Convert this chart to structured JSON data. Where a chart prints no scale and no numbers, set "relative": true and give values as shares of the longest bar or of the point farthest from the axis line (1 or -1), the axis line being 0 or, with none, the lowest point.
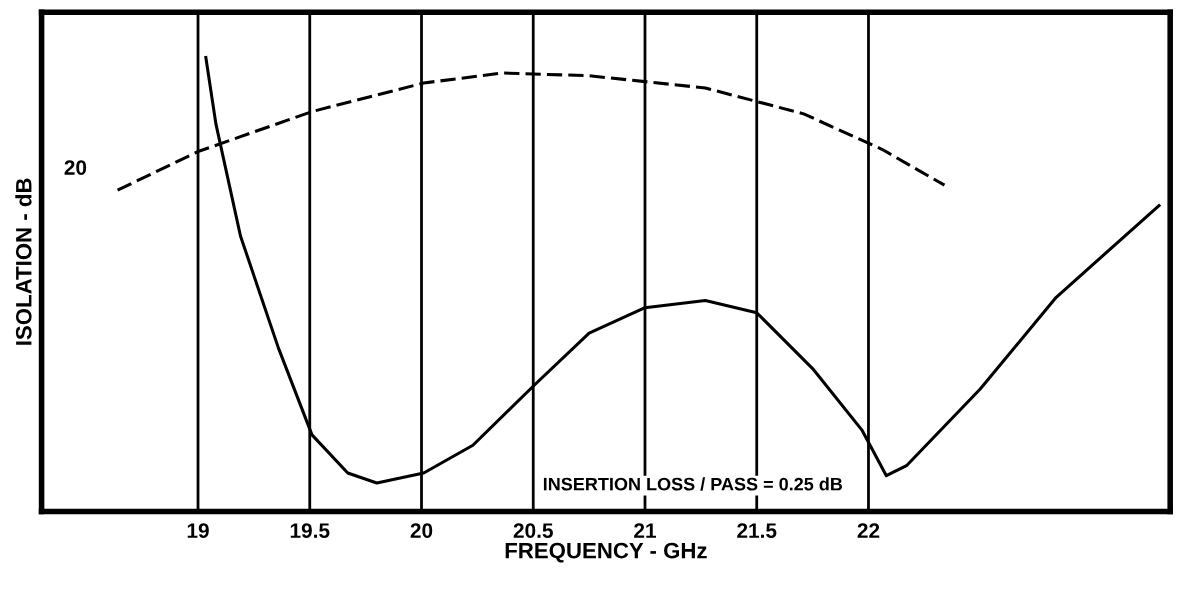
{
  "chart_data": {
    "type": "line",
    "relative": true,
    "xlabel": "FREQUENCY - GHz",
    "ylabel": "ISOLATION - dB",
    "xlim": [
      18.3,
      23.35
    ],
    "xticks": [
      19,
      19.5,
      20,
      20.5,
      21,
      21.5,
      22
    ],
    "grid": "x",
    "legend": false,
    "marker": "none",
    "annotations": [
      {
        "text": "20",
        "x": 18.64,
        "y": 0.708
      },
      "INSERTION LOSS / PASS = 0.25 dB"
    ],
    "series": [
      {
        "color": "#000000",
        "line_style": "solid",
        "x": [
          19.035,
          19.08,
          19.19,
          19.36,
          19.51,
          19.67,
          19.8,
          20.01,
          20.23,
          20.51,
          20.75,
          21.0,
          21.27,
          21.5,
          21.75,
          21.97,
          22.08,
          22.17,
          22.5,
          22.84,
          23.3
        ],
        "values": [
          1.0,
          0.854,
          0.607,
          0.36,
          0.169,
          0.085,
          0.063,
          0.085,
          0.146,
          0.281,
          0.393,
          0.449,
          0.465,
          0.438,
          0.315,
          0.18,
          0.079,
          0.101,
          0.27,
          0.472,
          0.674
        ]
      },
      {
        "color": "#000000",
        "line_style": "dashed",
        "x": [
          18.64,
          19.0,
          19.51,
          20.01,
          20.36,
          20.75,
          21.27,
          21.71,
          22.06,
          22.34
        ],
        "values": [
          0.708,
          0.793,
          0.881,
          0.944,
          0.966,
          0.96,
          0.933,
          0.876,
          0.798,
          0.719
        ]
      }
    ]
  }
}
